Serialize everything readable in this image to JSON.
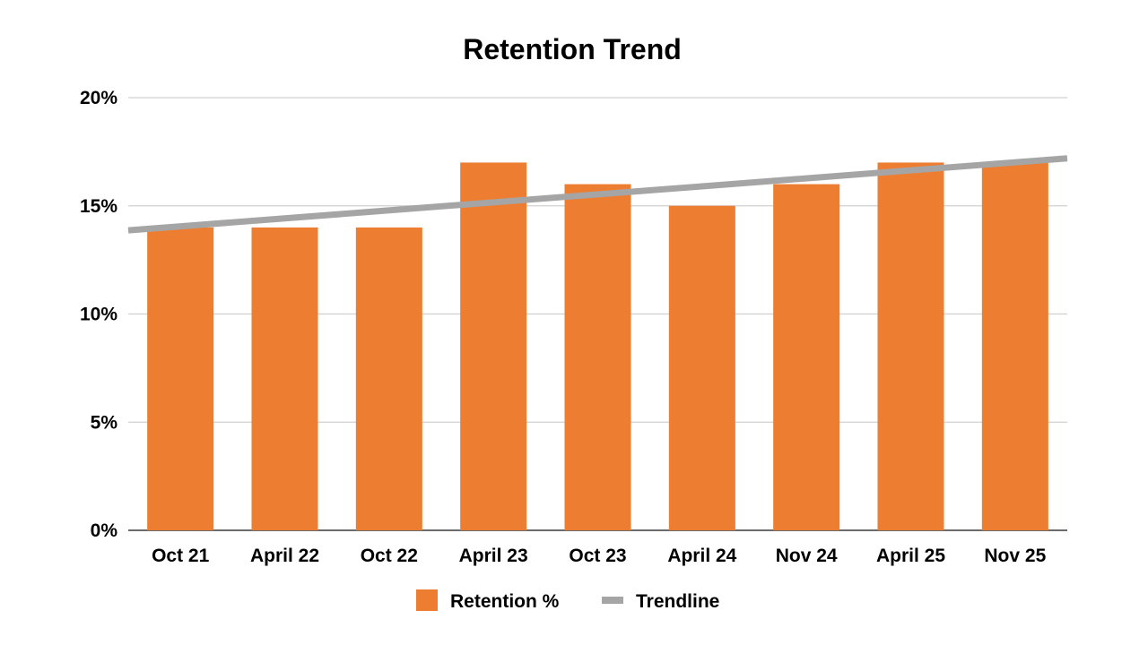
{
  "chart_data": {
    "type": "bar",
    "title": "Retention Trend",
    "xlabel": "",
    "ylabel": "",
    "categories": [
      "Oct 21",
      "April 22",
      "Oct 22",
      "April 23",
      "Oct 23",
      "April 24",
      "Nov 24",
      "April 25",
      "Nov 25"
    ],
    "series": [
      {
        "name": "Retention %",
        "type": "bar",
        "color": "#ED7D31",
        "values": [
          14,
          14,
          14,
          17,
          16,
          15,
          16,
          17,
          17
        ]
      },
      {
        "name": "Trendline",
        "type": "line",
        "color": "#A5A5A5",
        "values": [
          14.05,
          14.42,
          14.79,
          15.16,
          15.53,
          15.9,
          16.27,
          16.64,
          17.01
        ]
      }
    ],
    "ylim": [
      0,
      20
    ],
    "yticks": [
      0,
      5,
      10,
      15,
      20
    ],
    "ytick_labels": [
      "0%",
      "5%",
      "10%",
      "15%",
      "20%"
    ],
    "grid": true,
    "legend": "bottom"
  }
}
